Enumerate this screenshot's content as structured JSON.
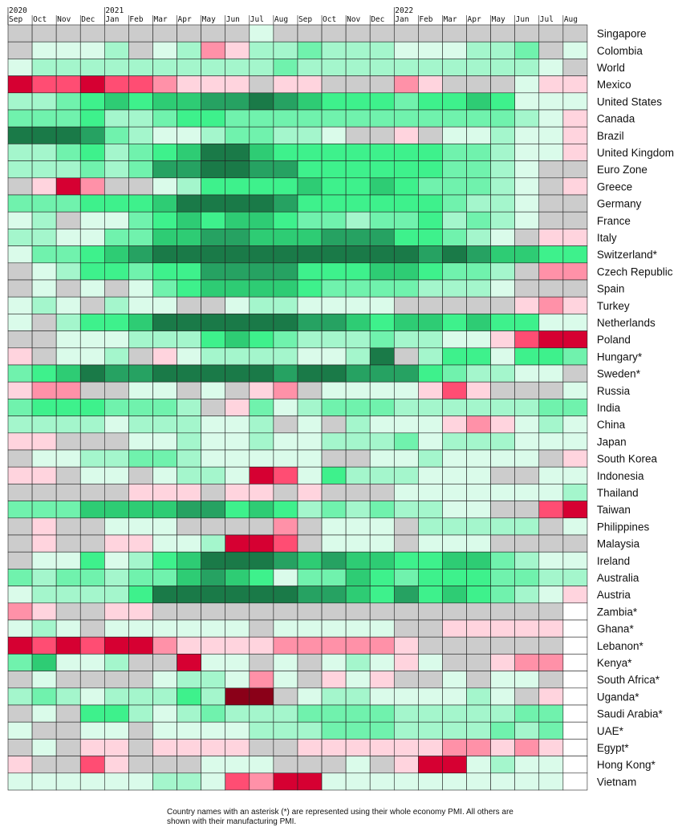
{
  "chart_data": {
    "type": "heatmap",
    "title": "",
    "xlabel": "",
    "ylabel": "",
    "x": [
      {
        "year": "2020",
        "month": "Sep"
      },
      {
        "year": "",
        "month": "Oct"
      },
      {
        "year": "",
        "month": "Nov"
      },
      {
        "year": "",
        "month": "Dec"
      },
      {
        "year": "2021",
        "month": "Jan"
      },
      {
        "year": "",
        "month": "Feb"
      },
      {
        "year": "",
        "month": "Mar"
      },
      {
        "year": "",
        "month": "Apr"
      },
      {
        "year": "",
        "month": "May"
      },
      {
        "year": "",
        "month": "Jun"
      },
      {
        "year": "",
        "month": "Jul"
      },
      {
        "year": "",
        "month": "Aug"
      },
      {
        "year": "",
        "month": "Sep"
      },
      {
        "year": "",
        "month": "Oct"
      },
      {
        "year": "",
        "month": "Nov"
      },
      {
        "year": "",
        "month": "Dec"
      },
      {
        "year": "2022",
        "month": "Jan"
      },
      {
        "year": "",
        "month": "Feb"
      },
      {
        "year": "",
        "month": "Mar"
      },
      {
        "year": "",
        "month": "Apr"
      },
      {
        "year": "",
        "month": "May"
      },
      {
        "year": "",
        "month": "Jun"
      },
      {
        "year": "",
        "month": "Jul"
      },
      {
        "year": "",
        "month": "Aug"
      }
    ],
    "rows": [
      "Singapore",
      "Colombia",
      "World",
      "Mexico",
      "United States",
      "Canada",
      "Brazil",
      "United Kingdom",
      "Euro Zone",
      "Greece",
      "Germany",
      "France",
      "Italy",
      "Switzerland*",
      "Czech Republic",
      "Spain",
      "Turkey",
      "Netherlands",
      "Poland",
      "Hungary*",
      "Sweden*",
      "Russia",
      "India",
      "China",
      "Japan",
      "South Korea",
      "Indonesia",
      "Thailand",
      "Taiwan",
      "Philippines",
      "Malaysia",
      "Ireland",
      "Australia",
      "Austria",
      "Zambia*",
      "Ghana*",
      "Lebanon*",
      "Kenya*",
      "South Africa*",
      "Uganda*",
      "Saudi Arabia*",
      "UAE*",
      "Egypt*",
      "Hong Kong*",
      "Vietnam"
    ],
    "scale_note": "Cell colour encodes PMI level class: r4..r1 = contraction (deep red to light pink), n = neutral (~50), g1..g5 = expansion (light mint to dark green), x = no data",
    "colors": {
      "r4": "#8a0018",
      "r3": "#d60032",
      "r2": "#ff4d73",
      "r1": "#ff91a8",
      "r0": "#ffd4de",
      "n": "#cccccc",
      "g1": "#dafbea",
      "g2": "#a4f6cc",
      "g3": "#70f2ad",
      "g4": "#3ef18c",
      "g5": "#2ecc74",
      "g6": "#26a262",
      "g7": "#1a7a48",
      "x": "#ffffff"
    },
    "values": [
      [
        "n",
        "n",
        "n",
        "n",
        "n",
        "n",
        "n",
        "n",
        "n",
        "n",
        "g1",
        "n",
        "n",
        "n",
        "n",
        "n",
        "n",
        "n",
        "n",
        "n",
        "n",
        "n",
        "n",
        "n"
      ],
      [
        "n",
        "g1",
        "g1",
        "g1",
        "g2",
        "n",
        "g1",
        "g2",
        "r1",
        "r0",
        "g2",
        "g2",
        "g3",
        "g2",
        "g2",
        "g2",
        "g1",
        "g1",
        "g1",
        "g2",
        "g2",
        "g3",
        "n",
        "g1"
      ],
      [
        "g1",
        "g2",
        "g2",
        "g2",
        "g2",
        "g2",
        "g2",
        "g2",
        "g2",
        "g2",
        "g2",
        "g3",
        "g2",
        "g2",
        "g2",
        "g2",
        "g2",
        "g2",
        "g2",
        "g2",
        "g2",
        "g2",
        "g1",
        "n"
      ],
      [
        "r3",
        "r2",
        "r2",
        "r3",
        "r2",
        "r2",
        "r1",
        "r0",
        "r0",
        "r0",
        "n",
        "r0",
        "r0",
        "n",
        "n",
        "n",
        "r1",
        "r0",
        "n",
        "n",
        "n",
        "g1",
        "r0",
        "r0"
      ],
      [
        "g2",
        "g2",
        "g3",
        "g4",
        "g5",
        "g4",
        "g5",
        "g5",
        "g6",
        "g6",
        "g7",
        "g6",
        "g5",
        "g4",
        "g4",
        "g4",
        "g3",
        "g4",
        "g4",
        "g5",
        "g4",
        "g1",
        "g1",
        "g1"
      ],
      [
        "g3",
        "g3",
        "g3",
        "g4",
        "g2",
        "g2",
        "g3",
        "g4",
        "g4",
        "g3",
        "g3",
        "g3",
        "g3",
        "g3",
        "g3",
        "g3",
        "g3",
        "g3",
        "g3",
        "g3",
        "g3",
        "g2",
        "g1",
        "r0"
      ],
      [
        "g7",
        "g7",
        "g7",
        "g6",
        "g3",
        "g2",
        "g1",
        "g1",
        "g2",
        "g3",
        "g3",
        "g2",
        "g2",
        "g1",
        "n",
        "n",
        "r0",
        "n",
        "g1",
        "g1",
        "g2",
        "g1",
        "g1",
        "r0"
      ],
      [
        "g2",
        "g2",
        "g3",
        "g4",
        "g2",
        "g3",
        "g4",
        "g5",
        "g7",
        "g7",
        "g5",
        "g4",
        "g4",
        "g4",
        "g4",
        "g4",
        "g4",
        "g4",
        "g3",
        "g3",
        "g2",
        "g1",
        "g1",
        "r0"
      ],
      [
        "g2",
        "g2",
        "g2",
        "g3",
        "g2",
        "g3",
        "g6",
        "g6",
        "g7",
        "g7",
        "g6",
        "g6",
        "g4",
        "g4",
        "g4",
        "g4",
        "g4",
        "g4",
        "g3",
        "g3",
        "g2",
        "g1",
        "n",
        "n"
      ],
      [
        "n",
        "r0",
        "r3",
        "r1",
        "n",
        "n",
        "g1",
        "g2",
        "g4",
        "g4",
        "g4",
        "g4",
        "g5",
        "g4",
        "g4",
        "g5",
        "g4",
        "g3",
        "g3",
        "g3",
        "g2",
        "g1",
        "n",
        "r0"
      ],
      [
        "g3",
        "g3",
        "g3",
        "g4",
        "g4",
        "g4",
        "g5",
        "g7",
        "g7",
        "g7",
        "g7",
        "g6",
        "g4",
        "g4",
        "g4",
        "g4",
        "g4",
        "g4",
        "g3",
        "g2",
        "g2",
        "g1",
        "n",
        "n"
      ],
      [
        "g1",
        "g2",
        "n",
        "g1",
        "g1",
        "g3",
        "g4",
        "g5",
        "g4",
        "g5",
        "g5",
        "g4",
        "g3",
        "g3",
        "g2",
        "g3",
        "g3",
        "g4",
        "g2",
        "g3",
        "g2",
        "g1",
        "n",
        "n"
      ],
      [
        "g2",
        "g2",
        "g1",
        "g1",
        "g3",
        "g3",
        "g5",
        "g5",
        "g6",
        "g6",
        "g5",
        "g5",
        "g5",
        "g6",
        "g6",
        "g6",
        "g4",
        "g4",
        "g3",
        "g2",
        "g1",
        "n",
        "r0",
        "r0"
      ],
      [
        "g1",
        "g3",
        "g3",
        "g4",
        "g5",
        "g6",
        "g7",
        "g7",
        "g7",
        "g7",
        "g7",
        "g7",
        "g7",
        "g7",
        "g7",
        "g7",
        "g7",
        "g6",
        "g7",
        "g6",
        "g5",
        "g5",
        "g4",
        "g4"
      ],
      [
        "n",
        "g1",
        "g2",
        "g4",
        "g4",
        "g3",
        "g4",
        "g4",
        "g6",
        "g6",
        "g6",
        "g6",
        "g4",
        "g4",
        "g4",
        "g5",
        "g5",
        "g4",
        "g3",
        "g3",
        "g2",
        "n",
        "r1",
        "r1"
      ],
      [
        "n",
        "g1",
        "n",
        "g1",
        "n",
        "g1",
        "g3",
        "g4",
        "g5",
        "g5",
        "g5",
        "g5",
        "g4",
        "g3",
        "g3",
        "g3",
        "g3",
        "g2",
        "g2",
        "g2",
        "g1",
        "n",
        "n",
        "n"
      ],
      [
        "g1",
        "g2",
        "g1",
        "n",
        "g2",
        "g1",
        "g1",
        "n",
        "n",
        "g1",
        "g2",
        "g2",
        "g1",
        "g1",
        "g1",
        "g1",
        "n",
        "n",
        "n",
        "n",
        "n",
        "r0",
        "r1",
        "r0"
      ],
      [
        "g1",
        "n",
        "g2",
        "g4",
        "g4",
        "g5",
        "g7",
        "g7",
        "g7",
        "g7",
        "g7",
        "g7",
        "g6",
        "g6",
        "g5",
        "g4",
        "g5",
        "g5",
        "g4",
        "g5",
        "g4",
        "g4",
        "g1",
        "g1"
      ],
      [
        "n",
        "n",
        "g1",
        "g1",
        "g1",
        "g2",
        "g2",
        "g2",
        "g4",
        "g5",
        "g4",
        "g3",
        "g2",
        "g2",
        "g2",
        "g3",
        "g2",
        "g2",
        "g1",
        "g1",
        "r0",
        "r2",
        "r3",
        "r3"
      ],
      [
        "r0",
        "n",
        "g1",
        "g1",
        "g2",
        "n",
        "r0",
        "g1",
        "g2",
        "g2",
        "g2",
        "g2",
        "g1",
        "g1",
        "g2",
        "g7",
        "n",
        "g2",
        "g4",
        "g4",
        "g1",
        "g4",
        "g4",
        "g3"
      ],
      [
        "g3",
        "g4",
        "g5",
        "g7",
        "g6",
        "g6",
        "g7",
        "g7",
        "g7",
        "g7",
        "g7",
        "g6",
        "g7",
        "g7",
        "g6",
        "g6",
        "g6",
        "g4",
        "g3",
        "g2",
        "g2",
        "g1",
        "g1",
        "n"
      ],
      [
        "r0",
        "r1",
        "r1",
        "n",
        "n",
        "g1",
        "g1",
        "n",
        "g1",
        "n",
        "r0",
        "r1",
        "n",
        "g1",
        "g1",
        "g1",
        "g1",
        "r0",
        "r2",
        "r0",
        "n",
        "n",
        "n",
        "g1"
      ],
      [
        "g3",
        "g4",
        "g4",
        "g4",
        "g3",
        "g3",
        "g3",
        "g2",
        "n",
        "r0",
        "g3",
        "g1",
        "g2",
        "g3",
        "g3",
        "g3",
        "g2",
        "g2",
        "g2",
        "g2",
        "g2",
        "g2",
        "g3",
        "g3"
      ],
      [
        "g2",
        "g2",
        "g2",
        "g2",
        "g1",
        "g2",
        "g2",
        "g2",
        "g1",
        "g1",
        "g2",
        "n",
        "g1",
        "n",
        "g2",
        "g1",
        "g1",
        "g1",
        "r0",
        "r1",
        "r0",
        "g1",
        "g2",
        "g1"
      ],
      [
        "r0",
        "r0",
        "n",
        "n",
        "n",
        "g1",
        "g1",
        "g2",
        "g1",
        "g1",
        "g2",
        "g1",
        "g1",
        "g2",
        "g2",
        "g2",
        "g3",
        "g1",
        "g2",
        "g2",
        "g2",
        "g1",
        "g1",
        "g1"
      ],
      [
        "n",
        "g1",
        "g1",
        "g2",
        "g2",
        "g3",
        "g3",
        "g2",
        "g1",
        "g1",
        "g1",
        "g1",
        "g1",
        "n",
        "n",
        "g1",
        "g1",
        "g2",
        "g1",
        "g1",
        "g1",
        "g1",
        "n",
        "r0"
      ],
      [
        "r0",
        "r0",
        "n",
        "g1",
        "g1",
        "n",
        "g1",
        "g2",
        "g2",
        "g1",
        "r3",
        "r2",
        "g1",
        "g4",
        "g2",
        "g2",
        "g2",
        "g1",
        "g1",
        "g1",
        "n",
        "n",
        "g1",
        "g1"
      ],
      [
        "n",
        "n",
        "n",
        "n",
        "n",
        "r0",
        "r0",
        "r0",
        "n",
        "r0",
        "r0",
        "n",
        "r0",
        "n",
        "n",
        "n",
        "g1",
        "g1",
        "g1",
        "g1",
        "g1",
        "g1",
        "g1",
        "g2"
      ],
      [
        "g3",
        "g3",
        "g3",
        "g5",
        "g5",
        "g5",
        "g5",
        "g6",
        "g6",
        "g4",
        "g5",
        "g4",
        "g2",
        "g3",
        "g2",
        "g3",
        "g2",
        "g2",
        "g1",
        "g1",
        "n",
        "n",
        "r2",
        "r3"
      ],
      [
        "n",
        "r0",
        "n",
        "n",
        "g1",
        "g1",
        "g1",
        "n",
        "n",
        "n",
        "n",
        "r1",
        "n",
        "g1",
        "g1",
        "g1",
        "n",
        "g2",
        "g2",
        "g2",
        "g2",
        "g2",
        "n",
        "g1"
      ],
      [
        "n",
        "r0",
        "n",
        "n",
        "r0",
        "r0",
        "g1",
        "g1",
        "g2",
        "r3",
        "r3",
        "r2",
        "n",
        "g1",
        "g1",
        "g1",
        "n",
        "g1",
        "g1",
        "g1",
        "n",
        "n",
        "n",
        "n"
      ],
      [
        "n",
        "g1",
        "g1",
        "g4",
        "g1",
        "g2",
        "g4",
        "g5",
        "g7",
        "g7",
        "g7",
        "g6",
        "g5",
        "g6",
        "g5",
        "g5",
        "g4",
        "g4",
        "g5",
        "g5",
        "g3",
        "g2",
        "g1",
        "g1"
      ],
      [
        "g3",
        "g2",
        "g3",
        "g3",
        "g2",
        "g3",
        "g3",
        "g5",
        "g6",
        "g5",
        "g4",
        "g1",
        "g3",
        "g3",
        "g5",
        "g4",
        "g3",
        "g4",
        "g4",
        "g4",
        "g3",
        "g3",
        "g2",
        "g2"
      ],
      [
        "g1",
        "g2",
        "g2",
        "g2",
        "g2",
        "g4",
        "g7",
        "g7",
        "g7",
        "g7",
        "g7",
        "g7",
        "g6",
        "g6",
        "g5",
        "g4",
        "g6",
        "g4",
        "g5",
        "g4",
        "g3",
        "g2",
        "g1",
        "r0"
      ],
      [
        "r1",
        "r0",
        "n",
        "n",
        "r0",
        "r0",
        "n",
        "n",
        "n",
        "n",
        "n",
        "n",
        "n",
        "n",
        "n",
        "n",
        "n",
        "n",
        "n",
        "n",
        "n",
        "n",
        "n",
        "x"
      ],
      [
        "g1",
        "g2",
        "g1",
        "n",
        "g1",
        "g1",
        "g1",
        "g1",
        "g1",
        "g1",
        "n",
        "g1",
        "g1",
        "g1",
        "g1",
        "g1",
        "n",
        "n",
        "r0",
        "r0",
        "r0",
        "r0",
        "r0",
        "x"
      ],
      [
        "r3",
        "r2",
        "r3",
        "r2",
        "r3",
        "r3",
        "r1",
        "r0",
        "r0",
        "r0",
        "r0",
        "r1",
        "r1",
        "r1",
        "r1",
        "r1",
        "r0",
        "n",
        "n",
        "n",
        "n",
        "n",
        "n",
        "x"
      ],
      [
        "g3",
        "g5",
        "g1",
        "g1",
        "g2",
        "n",
        "n",
        "r3",
        "g1",
        "g1",
        "n",
        "g1",
        "n",
        "g1",
        "g2",
        "g1",
        "r0",
        "g1",
        "n",
        "n",
        "r0",
        "r1",
        "r1",
        "x"
      ],
      [
        "n",
        "g1",
        "n",
        "n",
        "n",
        "n",
        "g1",
        "g2",
        "g2",
        "g1",
        "r1",
        "g1",
        "n",
        "r0",
        "g1",
        "r0",
        "n",
        "n",
        "g1",
        "n",
        "g1",
        "g1",
        "n",
        "x"
      ],
      [
        "g2",
        "g3",
        "g2",
        "g1",
        "g2",
        "g2",
        "g2",
        "g4",
        "g2",
        "r4",
        "r4",
        "n",
        "g1",
        "g2",
        "g2",
        "g1",
        "g1",
        "g1",
        "g1",
        "g2",
        "g1",
        "n",
        "r0",
        "x"
      ],
      [
        "n",
        "g1",
        "n",
        "g4",
        "g4",
        "g2",
        "g1",
        "g2",
        "g3",
        "g2",
        "g2",
        "g2",
        "g3",
        "g3",
        "g3",
        "g3",
        "g2",
        "g2",
        "g2",
        "g2",
        "g2",
        "g3",
        "g3",
        "x"
      ],
      [
        "g1",
        "n",
        "n",
        "g1",
        "g1",
        "n",
        "g1",
        "g1",
        "g1",
        "g1",
        "g2",
        "g2",
        "g2",
        "g3",
        "g3",
        "g3",
        "g2",
        "g2",
        "g2",
        "g2",
        "g3",
        "g2",
        "g3",
        "x"
      ],
      [
        "n",
        "g1",
        "n",
        "r0",
        "r0",
        "n",
        "r0",
        "r0",
        "r0",
        "r0",
        "n",
        "n",
        "r0",
        "r0",
        "r0",
        "r0",
        "r0",
        "r0",
        "r1",
        "r1",
        "r0",
        "r1",
        "r0",
        "x"
      ],
      [
        "r0",
        "n",
        "n",
        "r2",
        "r0",
        "n",
        "n",
        "n",
        "g1",
        "g1",
        "g1",
        "n",
        "n",
        "n",
        "g1",
        "n",
        "r0",
        "r3",
        "r3",
        "g1",
        "g2",
        "g1",
        "g1",
        "x"
      ],
      [
        "g1",
        "g1",
        "g1",
        "g1",
        "g1",
        "g1",
        "g2",
        "g2",
        "g1",
        "r2",
        "r1",
        "r3",
        "r3",
        "g1",
        "g1",
        "g1",
        "g1",
        "g1",
        "g1",
        "g1",
        "g1",
        "g1",
        "g1",
        "x"
      ]
    ]
  },
  "footnote": "Country names with an asterisk (*) are represented using their whole economy PMI. All others are shown with their manufacturing PMI."
}
